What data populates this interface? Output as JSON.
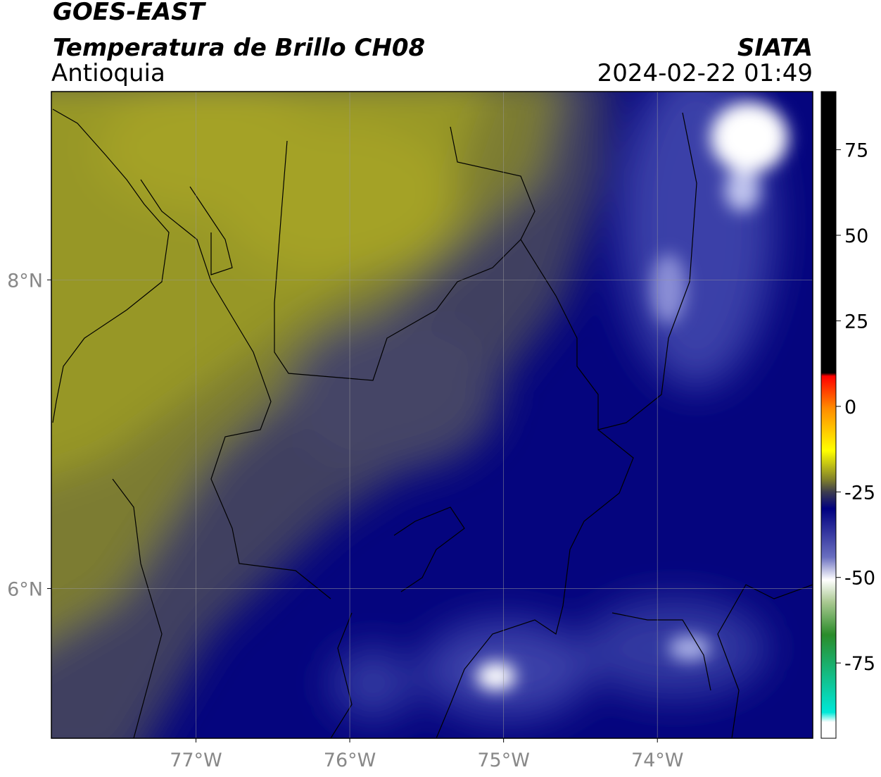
{
  "header": {
    "title": "GOES-EAST",
    "subtitle": "Temperatura de Brillo CH08",
    "region": "Antioquia",
    "source": "SIATA",
    "datetime": "2024-02-22 01:49"
  },
  "map": {
    "xlim": [
      -77.94,
      -72.99
    ],
    "ylim": [
      5.03,
      9.22
    ],
    "xticks": [
      {
        "value": -77,
        "label": "77°W"
      },
      {
        "value": -76,
        "label": "76°W"
      },
      {
        "value": -75,
        "label": "75°W"
      },
      {
        "value": -74,
        "label": "74°W"
      }
    ],
    "yticks": [
      {
        "value": 8,
        "label": "8°N"
      },
      {
        "value": 6,
        "label": "6°N"
      }
    ],
    "grid": true
  },
  "colorbar": {
    "lim": [
      -97,
      92
    ],
    "ticks": [
      75,
      50,
      25,
      0,
      -25,
      -50,
      -75
    ]
  }
}
